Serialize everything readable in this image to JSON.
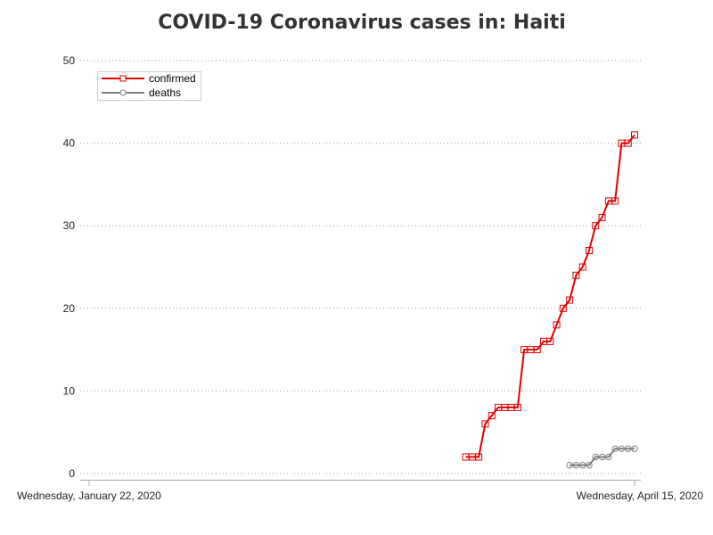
{
  "chart_data": {
    "type": "line",
    "title": "COVID-19 Coronavirus cases in: Haiti",
    "xlabel": "",
    "ylabel": "",
    "x_ticks": [
      "Wednesday, January 22, 2020",
      "Wednesday, April 15, 2020"
    ],
    "x_range": [
      "2020-01-22",
      "2020-04-15"
    ],
    "ylim": [
      0,
      50
    ],
    "y_ticks": [
      0,
      10,
      20,
      30,
      40,
      50
    ],
    "grid": true,
    "legend": "top-left",
    "series": [
      {
        "name": "confirmed",
        "color": "#e00000",
        "marker": "square",
        "x": [
          "2020-03-20",
          "2020-03-21",
          "2020-03-22",
          "2020-03-23",
          "2020-03-24",
          "2020-03-25",
          "2020-03-26",
          "2020-03-27",
          "2020-03-28",
          "2020-03-29",
          "2020-03-30",
          "2020-03-31",
          "2020-04-01",
          "2020-04-02",
          "2020-04-03",
          "2020-04-04",
          "2020-04-05",
          "2020-04-06",
          "2020-04-07",
          "2020-04-08",
          "2020-04-09",
          "2020-04-10",
          "2020-04-11",
          "2020-04-12",
          "2020-04-13",
          "2020-04-14",
          "2020-04-15"
        ],
        "values": [
          2,
          2,
          2,
          6,
          7,
          8,
          8,
          8,
          8,
          15,
          15,
          15,
          16,
          16,
          18,
          20,
          21,
          24,
          25,
          27,
          30,
          31,
          33,
          33,
          40,
          40,
          41
        ]
      },
      {
        "name": "deaths",
        "color": "#808080",
        "marker": "circle",
        "x": [
          "2020-04-05",
          "2020-04-06",
          "2020-04-07",
          "2020-04-08",
          "2020-04-09",
          "2020-04-10",
          "2020-04-11",
          "2020-04-12",
          "2020-04-13",
          "2020-04-14",
          "2020-04-15"
        ],
        "values": [
          1,
          1,
          1,
          1,
          2,
          2,
          2,
          3,
          3,
          3,
          3
        ]
      }
    ]
  }
}
